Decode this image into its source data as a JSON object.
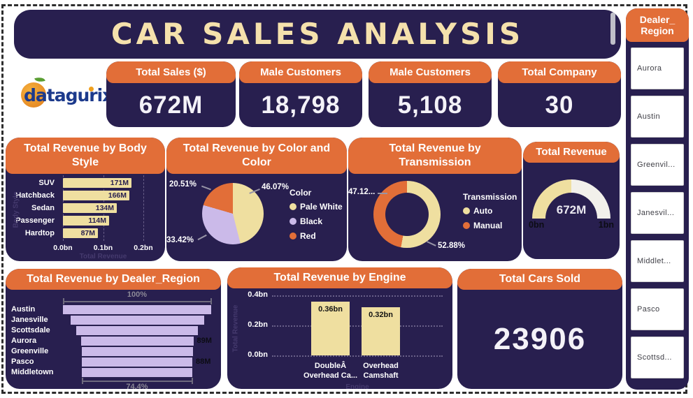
{
  "title": "CAR SALES ANALYSIS",
  "logo": {
    "text": "datagurix"
  },
  "kpis": [
    {
      "label": "Total Sales ($)",
      "value": "672M"
    },
    {
      "label": "Male Customers",
      "value": "18,798"
    },
    {
      "label": "Male Customers",
      "value": "5,108"
    },
    {
      "label": "Total Company",
      "value": "30"
    }
  ],
  "sidebar": {
    "title": "Dealer_ Region",
    "title_lines": [
      "Dealer_",
      "Region"
    ],
    "items": [
      "Aurora",
      "Austin",
      "Greenvil...",
      "Janesvil...",
      "Middlet...",
      "Pasco",
      "Scottsd..."
    ]
  },
  "colors": {
    "navy": "#281F4F",
    "orange": "#E26E38",
    "cream": "#EFDFA0",
    "purple": "#CBBAE9",
    "title_cream": "#F5E1AC",
    "axis_title": "#453A6E",
    "gray_label": "#8B8896",
    "gauge_rest": "#F2F0EB",
    "black_label": "#0C0C14"
  },
  "chart_data": [
    {
      "id": "body_style",
      "type": "bar",
      "orientation": "horizontal",
      "title": "Total Revenue by Body Style",
      "categories": [
        "SUV",
        "Hatchback",
        "Sedan",
        "Passenger",
        "Hardtop"
      ],
      "values": [
        171,
        166,
        134,
        114,
        87
      ],
      "value_labels": [
        "171M",
        "166M",
        "134M",
        "114M",
        "87M"
      ],
      "x_ticks": [
        "0.0bn",
        "0.1bn",
        "0.2bn"
      ],
      "x_max": 200,
      "xlabel": "Total Revenue",
      "ylabel": "Body Style",
      "grid": "dashed-vertical"
    },
    {
      "id": "color_pie",
      "type": "pie",
      "title": "Total Revenue by Color and Color",
      "legend_title": "Color",
      "legend_position": "right",
      "slices": [
        {
          "label": "Pale White",
          "pct": 46.07,
          "display": "46.07%",
          "color": "cream"
        },
        {
          "label": "Black",
          "pct": 33.42,
          "display": "33.42%",
          "color": "purple"
        },
        {
          "label": "Red",
          "pct": 20.51,
          "display": "20.51%",
          "color": "orange"
        }
      ]
    },
    {
      "id": "transmission",
      "type": "donut",
      "title": "Total Revenue by Transmission",
      "legend_title": "Transmission",
      "legend_position": "right",
      "slices": [
        {
          "label": "Auto",
          "pct": 52.88,
          "display": "52.88%",
          "color": "cream"
        },
        {
          "label": "Manual",
          "pct": 47.12,
          "display": "47.12...",
          "color": "orange"
        }
      ]
    },
    {
      "id": "gauge",
      "type": "gauge",
      "title": "Total Revenue",
      "value": "672M",
      "min_label": "0bn",
      "max_label": "1bn",
      "fill_fraction": 0.5
    },
    {
      "id": "funnel",
      "type": "funnel",
      "title": "Total Revenue by Dealer_Region",
      "categories": [
        "Austin",
        "Janesville",
        "Scottsdale",
        "Aurora",
        "Greenville",
        "Pasco",
        "Middletown"
      ],
      "widths_pct": [
        100,
        89.9,
        81.9,
        76.1,
        75.2,
        74.6,
        74.4
      ],
      "bar_labels": [
        "",
        "",
        "",
        "89M",
        "",
        "88M",
        ""
      ],
      "top_label": "100%",
      "bottom_label": "74.4%"
    },
    {
      "id": "engine",
      "type": "bar",
      "orientation": "vertical",
      "title": "Total Revenue by Engine",
      "categories": [
        [
          "DoubleÂ",
          "Overhead Ca..."
        ],
        [
          "Overhead",
          "Camshaft"
        ]
      ],
      "values": [
        0.36,
        0.32
      ],
      "value_labels": [
        "0.36bn",
        "0.32bn"
      ],
      "y_ticks": [
        "0.0bn",
        "0.2bn",
        "0.4bn"
      ],
      "y_max": 0.4,
      "xlabel": "Engine",
      "ylabel": "Total Revenue",
      "grid": "dotted-horizontal"
    },
    {
      "id": "cars_sold",
      "type": "card",
      "title": "Total Cars Sold",
      "value": "23906"
    }
  ]
}
